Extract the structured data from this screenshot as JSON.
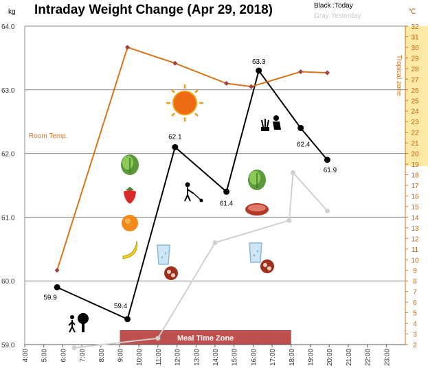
{
  "chart_data": {
    "type": "line",
    "title": "Intraday Weight Change (Apr 29, 2018)",
    "y_unit": "kg",
    "y2_unit": "℃",
    "legend": {
      "today": "Black :Today",
      "yesterday": "Gray:Yesterday"
    },
    "ylim": [
      59.0,
      64.0
    ],
    "y_ticks": [
      "59.0",
      "60.0",
      "61.0",
      "62.0",
      "63.0",
      "64.0"
    ],
    "y2lim": [
      2,
      32
    ],
    "y2_ticks": [
      "2",
      "3",
      "4",
      "5",
      "6",
      "7",
      "8",
      "9",
      "10",
      "11",
      "12",
      "13",
      "14",
      "15",
      "16",
      "17",
      "18",
      "19",
      "20",
      "21",
      "22",
      "23",
      "24",
      "25",
      "26",
      "27",
      "28",
      "29",
      "30",
      "31",
      "32"
    ],
    "xlim": [
      4,
      24
    ],
    "x_ticks": [
      "4:00",
      "5:00",
      "6:00",
      "7:00",
      "8:00",
      "9:00",
      "10:00",
      "11:00",
      "12:00",
      "13:00",
      "14:00",
      "15:00",
      "16:00",
      "17:00",
      "18:00",
      "19:00",
      "20:00",
      "21:00",
      "22:00",
      "23:00"
    ],
    "grid": "horizontal",
    "series": [
      {
        "name": "Today",
        "color": "#000000",
        "x": [
          5.7,
          9.4,
          11.9,
          14.6,
          16.3,
          18.5,
          19.9
        ],
        "values": [
          59.9,
          59.4,
          62.1,
          61.4,
          63.3,
          62.4,
          61.9
        ],
        "labels": [
          "59.9",
          "59.4",
          "62.1",
          "61.4",
          "63.3",
          "62.4",
          "61.9"
        ]
      },
      {
        "name": "Yesterday",
        "color": "#d0d0d0",
        "x": [
          6.6,
          11.0,
          14.0,
          17.9,
          18.1,
          19.9
        ],
        "values": [
          58.95,
          59.1,
          60.6,
          60.95,
          61.7,
          61.1
        ]
      },
      {
        "name": "Room Temp.",
        "color": "#d9731a",
        "axis": "y2",
        "x": [
          5.7,
          9.4,
          11.9,
          14.6,
          15.9,
          18.5,
          19.9
        ],
        "values": [
          9.0,
          30.0,
          28.5,
          26.6,
          26.3,
          27.7,
          27.6
        ]
      }
    ],
    "annotations": {
      "room_temp_label": "Room Temp.",
      "tropical_zone_label": "Tropical zone",
      "tropical_zone_range": [
        20,
        32
      ],
      "meal_time_label": "Meal Time Zone",
      "meal_time_range": [
        9.0,
        18.0
      ]
    },
    "icons": [
      "sun-icon",
      "lettuce-icon",
      "strawberry-icon",
      "orange-icon",
      "banana-icon",
      "water-glass-icon",
      "pills-icon",
      "steak-icon",
      "gardening-icon",
      "walking-with-tree-icon",
      "mowing-icon"
    ]
  },
  "colors": {
    "today": "#000000",
    "yesterday": "#d0d0d0",
    "temp": "#d9731a",
    "zone": "#fde9a6",
    "meal": "#c0504d"
  }
}
